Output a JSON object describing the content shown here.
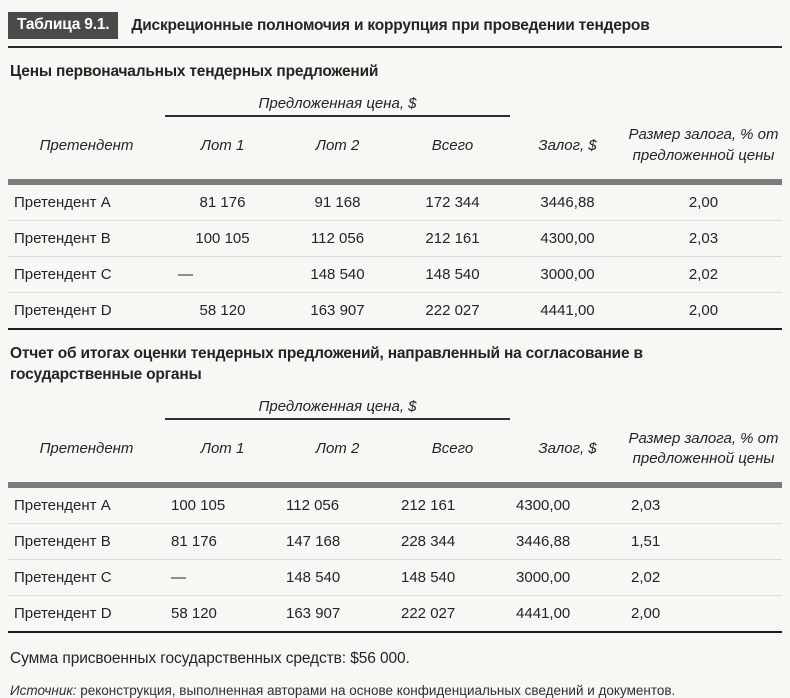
{
  "header": {
    "label": "Таблица 9.1.",
    "title": "Дискреционные полномочия и коррупция при проведении тендеров"
  },
  "tables": [
    {
      "section_title": "Цены первоначальных тендерных предложений",
      "group_header": "Предложенная цена, $",
      "columns": [
        "Претендент",
        "Лот 1",
        "Лот 2",
        "Всего",
        "Залог, $",
        "Размер залога, % от предложенной цены"
      ],
      "rows": [
        [
          "Претендент A",
          "81 176",
          "91 168",
          "172 344",
          "3446,88",
          "2,00"
        ],
        [
          "Претендент B",
          "100 105",
          "112 056",
          "212 161",
          "4300,00",
          "2,03"
        ],
        [
          "Претендент C",
          "—",
          "148 540",
          "148 540",
          "3000,00",
          "2,02"
        ],
        [
          "Претендент D",
          "58 120",
          "163 907",
          "222 027",
          "4441,00",
          "2,00"
        ]
      ]
    },
    {
      "section_title": "Отчет об итогах оценки тендерных предложений, направленный на согласование в государственные органы",
      "group_header": "Предложенная цена, $",
      "columns": [
        "Претендент",
        "Лот 1",
        "Лот 2",
        "Всего",
        "Залог, $",
        "Размер залога, % от предложенной цены"
      ],
      "rows": [
        [
          "Претендент A",
          "100 105",
          "112 056",
          "212 161",
          "4300,00",
          "2,03"
        ],
        [
          "Претендент B",
          "81 176",
          "147 168",
          "228 344",
          "3446,88",
          "1,51"
        ],
        [
          "Претендент C",
          "—",
          "148 540",
          "148 540",
          "3000,00",
          "2,02"
        ],
        [
          "Претендент D",
          "58 120",
          "163 907",
          "222 027",
          "4441,00",
          "2,00"
        ]
      ]
    }
  ],
  "footer": {
    "summary": "Сумма присвоенных государственных средств: $56 000.",
    "source_label": "Источник:",
    "source_text": "реконструкция, выполненная авторами на основе конфиденциальных сведений и документов."
  },
  "colors": {
    "label_bg": "#4a4a4a",
    "label_text": "#ffffff",
    "header_bar": "#7c7c7c",
    "rule_dark": "#1c1c1c",
    "page_bg": "#f8f7f4",
    "text": "#242424"
  }
}
